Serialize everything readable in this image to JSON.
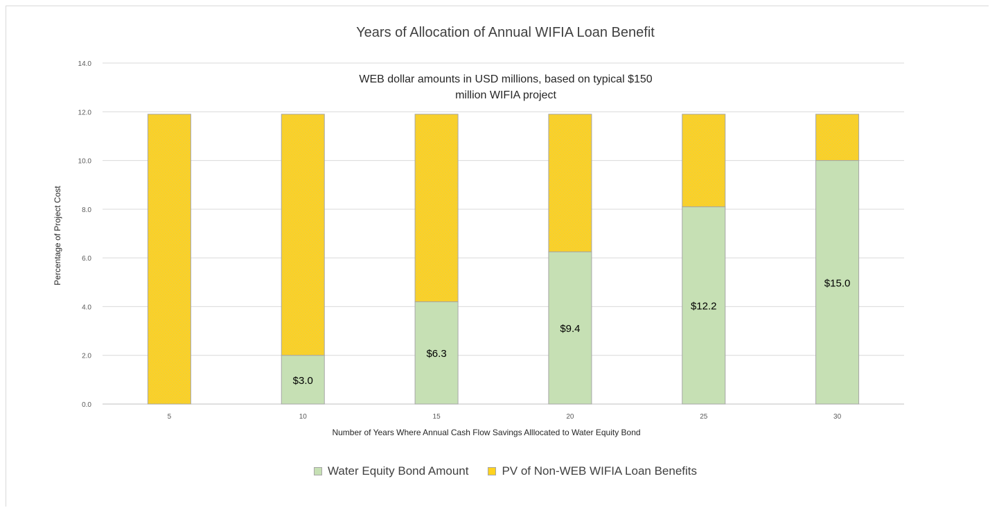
{
  "chart_data": {
    "type": "bar",
    "stacked": true,
    "title": "Years of Allocation of Annual WIFIA Loan Benefit",
    "annotation": "WEB dollar amounts in USD millions, based on typical $150 million WIFIA project",
    "xlabel": "Number of Years Where Annual Cash Flow Savings Alllocated to Water Equity Bond",
    "ylabel": "Percentage of Project Cost",
    "ylim": [
      0,
      14
    ],
    "yticks": [
      "0.0",
      "2.0",
      "4.0",
      "6.0",
      "8.0",
      "10.0",
      "12.0",
      "14.0"
    ],
    "categories": [
      "5",
      "10",
      "15",
      "20",
      "25",
      "30"
    ],
    "series": [
      {
        "name": "Water Equity Bond Amount",
        "color": "#c6e0b4",
        "values": [
          0,
          2.0,
          4.2,
          6.25,
          8.1,
          10.0
        ],
        "labels": [
          "",
          "$3.0",
          "$6.3",
          "$9.4",
          "$12.2",
          "$15.0"
        ]
      },
      {
        "name": "PV of Non-WEB WIFIA Loan Benefits",
        "color": "#ffd21f",
        "values": [
          11.9,
          9.9,
          7.7,
          5.65,
          3.8,
          1.9
        ]
      }
    ],
    "grid": true,
    "legend_position": "bottom"
  }
}
